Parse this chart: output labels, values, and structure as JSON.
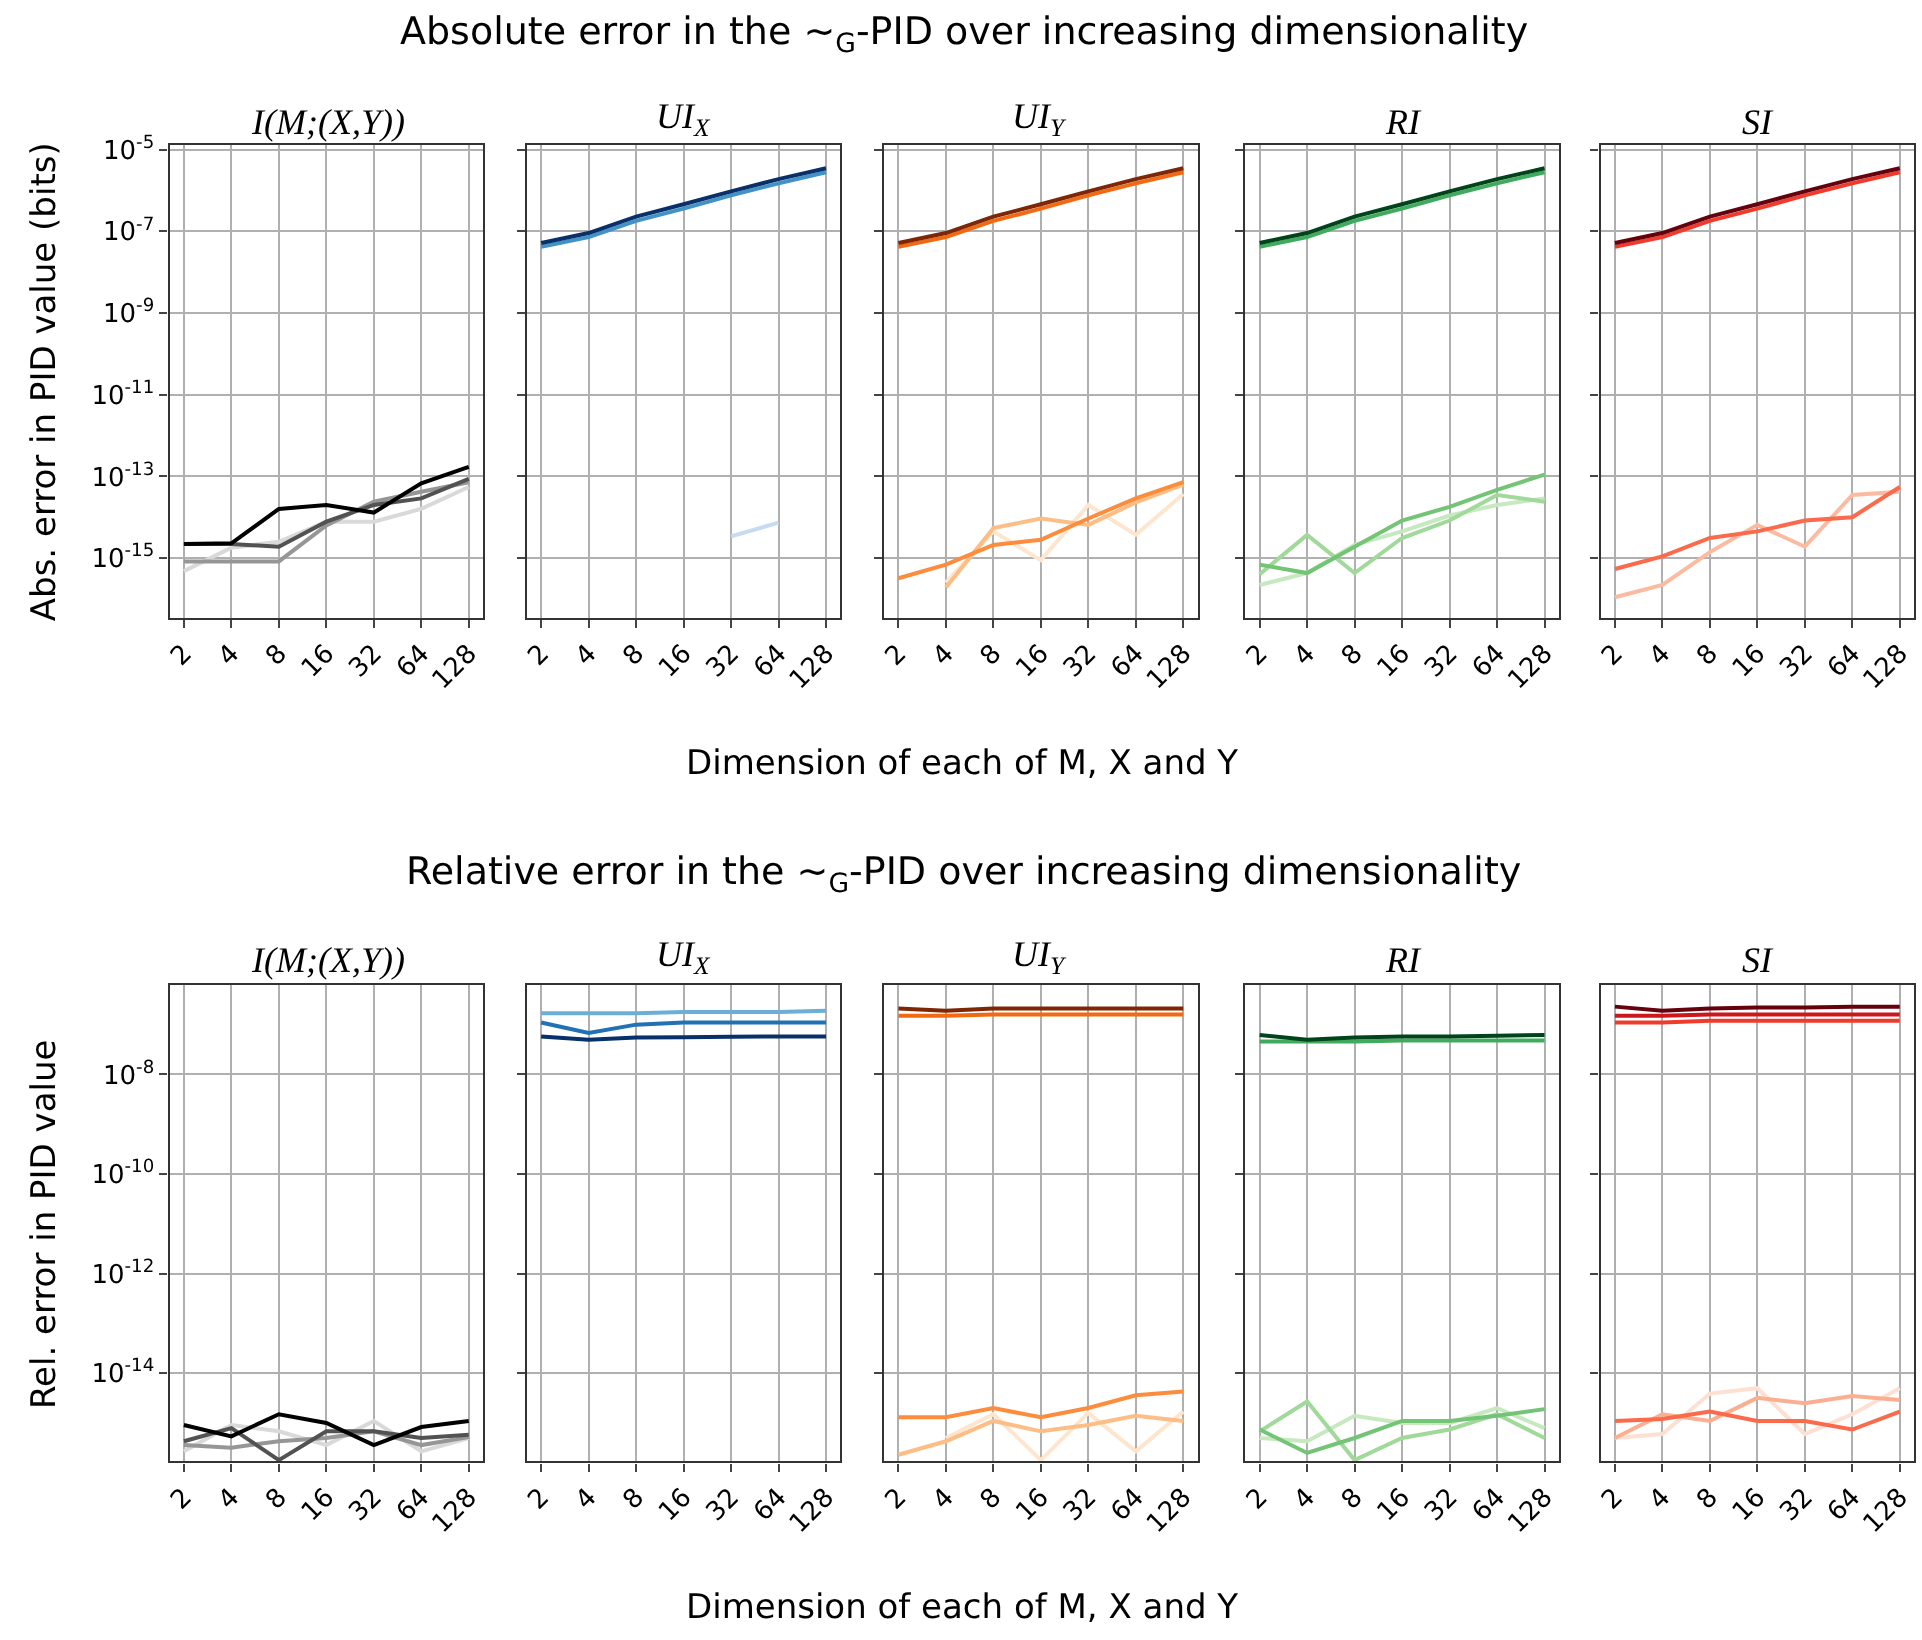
{
  "chart_data": [
    {
      "type": "line",
      "title": "I(M;(X,Y))",
      "annotations": [
        "Absolute error in the ∼$_{G}$-PID over increasing dimensionality"
      ],
      "xlabel": "Dimension of each of M, X and Y",
      "ylabel": "Abs. error in PID value (bits)",
      "categories": [
        "2",
        "4",
        "8",
        "16",
        "32",
        "64",
        "128"
      ],
      "ylim": [
        3.5e-17,
        1.3e-05
      ],
      "yticks": [
        {
          "value": 1e-05,
          "label": "10$^{-5}$"
        },
        {
          "value": 1e-07,
          "label": "10$^{-7}$"
        },
        {
          "value": 1e-09,
          "label": "10$^{-9}$"
        },
        {
          "value": 1e-11,
          "label": "10$^{-11}$"
        },
        {
          "value": 1e-13,
          "label": "10$^{-13}$"
        },
        {
          "value": 1e-15,
          "label": "10$^{-15}$"
        }
      ],
      "log": "y",
      "grid": true,
      "series": [
        {
          "color": "#d9d9d9",
          "values": [
            4.8e-16,
            1.8e-15,
            2.5e-15,
            7.8e-15,
            7.8e-15,
            1.6e-14,
            5.5e-14
          ]
        },
        {
          "color": "#969696",
          "values": [
            8.3e-16,
            8.3e-16,
            8.3e-16,
            6.3e-15,
            2.4e-14,
            4.2e-14,
            7.2e-14
          ]
        },
        {
          "color": "#525252",
          "values": [
            2.2e-15,
            2.2e-15,
            1.9e-15,
            7.8e-15,
            2e-14,
            2.9e-14,
            8.7e-14
          ]
        },
        {
          "color": "#000000",
          "values": [
            2.2e-15,
            2.3e-15,
            1.6e-14,
            2e-14,
            1.3e-14,
            6.8e-14,
            1.7e-13
          ]
        }
      ]
    },
    {
      "type": "line",
      "title": "UI$_{X}$",
      "categories": [
        "2",
        "4",
        "8",
        "16",
        "32",
        "64",
        "128"
      ],
      "ylim": [
        3.5e-17,
        1.3e-05
      ],
      "yticks": [
        {
          "value": 1e-05,
          "label": "10$^{-5}$"
        },
        {
          "value": 1e-07,
          "label": "10$^{-7}$"
        },
        {
          "value": 1e-09,
          "label": "10$^{-9}$"
        },
        {
          "value": 1e-11,
          "label": "10$^{-11}$"
        },
        {
          "value": 1e-13,
          "label": "10$^{-13}$"
        },
        {
          "value": 1e-15,
          "label": "10$^{-15}$"
        }
      ],
      "log": "y",
      "grid": true,
      "tick_labels": "x",
      "series": [
        {
          "color": "#c6dbef",
          "values": [
            null,
            null,
            null,
            null,
            3.4e-15,
            7.4e-15,
            null
          ]
        },
        {
          "color": "#4292c6",
          "values": [
            4.2e-08,
            7.2e-08,
            1.8e-07,
            3.6e-07,
            7.6e-07,
            1.5e-06,
            2.8e-06
          ]
        },
        {
          "color": "#08306b",
          "values": [
            5.2e-08,
            9.1e-08,
            2.3e-07,
            4.6e-07,
            9.5e-07,
            1.9e-06,
            3.5e-06
          ]
        }
      ]
    },
    {
      "type": "line",
      "title": "UI$_{Y}$",
      "categories": [
        "2",
        "4",
        "8",
        "16",
        "32",
        "64",
        "128"
      ],
      "ylim": [
        3.5e-17,
        1.3e-05
      ],
      "yticks": [
        {
          "value": 1e-05,
          "label": "10$^{-5}$"
        },
        {
          "value": 1e-07,
          "label": "10$^{-7}$"
        },
        {
          "value": 1e-09,
          "label": "10$^{-9}$"
        },
        {
          "value": 1e-11,
          "label": "10$^{-11}$"
        },
        {
          "value": 1e-13,
          "label": "10$^{-13}$"
        },
        {
          "value": 1e-15,
          "label": "10$^{-15}$"
        }
      ],
      "log": "y",
      "grid": true,
      "tick_labels": "x",
      "series": [
        {
          "color": "#fee6ce",
          "values": [
            null,
            2.5e-16,
            4.5e-15,
            8.9e-16,
            2e-14,
            3.7e-15,
            3.7e-14
          ]
        },
        {
          "color": "#fdbe85",
          "values": [
            null,
            1.9e-16,
            5.4e-15,
            9.3e-15,
            6.5e-15,
            2.3e-14,
            6.3e-14
          ]
        },
        {
          "color": "#fd8d3c",
          "values": [
            3.2e-16,
            6.9e-16,
            2.1e-15,
            2.8e-15,
            9.3e-15,
            2.9e-14,
            7.2e-14
          ]
        },
        {
          "color": "#f16913",
          "values": [
            4.2e-08,
            7.2e-08,
            1.8e-07,
            3.6e-07,
            7.6e-07,
            1.5e-06,
            2.8e-06
          ]
        },
        {
          "color": "#7f2704",
          "values": [
            5.2e-08,
            9.1e-08,
            2.3e-07,
            4.6e-07,
            9.5e-07,
            1.9e-06,
            3.5e-06
          ]
        }
      ]
    },
    {
      "type": "line",
      "title": "RI",
      "categories": [
        "2",
        "4",
        "8",
        "16",
        "32",
        "64",
        "128"
      ],
      "ylim": [
        3.5e-17,
        1.3e-05
      ],
      "yticks": [
        {
          "value": 1e-05,
          "label": "10$^{-5}$"
        },
        {
          "value": 1e-07,
          "label": "10$^{-7}$"
        },
        {
          "value": 1e-09,
          "label": "10$^{-9}$"
        },
        {
          "value": 1e-11,
          "label": "10$^{-11}$"
        },
        {
          "value": 1e-13,
          "label": "10$^{-13}$"
        },
        {
          "value": 1e-15,
          "label": "10$^{-15}$"
        }
      ],
      "log": "y",
      "grid": true,
      "tick_labels": "x",
      "series": [
        {
          "color": "#c7e9c0",
          "values": [
            2.2e-16,
            4.3e-16,
            2.1e-15,
            4.5e-15,
            1.1e-14,
            2e-14,
            2.9e-14
          ]
        },
        {
          "color": "#a1d99b",
          "values": [
            4e-16,
            3.7e-15,
            4.3e-16,
            3.1e-15,
            8.3e-15,
            3.5e-14,
            2.4e-14
          ]
        },
        {
          "color": "#74c476",
          "values": [
            6.9e-16,
            4.3e-16,
            1.9e-15,
            8.3e-15,
            1.8e-14,
            4.7e-14,
            1.1e-13
          ]
        },
        {
          "color": "#41ab5d",
          "values": [
            4.2e-08,
            7.2e-08,
            1.8e-07,
            3.6e-07,
            7.6e-07,
            1.5e-06,
            2.8e-06
          ]
        },
        {
          "color": "#00441b",
          "values": [
            5.2e-08,
            9.1e-08,
            2.3e-07,
            4.6e-07,
            9.5e-07,
            1.9e-06,
            3.5e-06
          ]
        }
      ]
    },
    {
      "type": "line",
      "title": "SI",
      "categories": [
        "2",
        "4",
        "8",
        "16",
        "32",
        "64",
        "128"
      ],
      "ylim": [
        3.5e-17,
        1.3e-05
      ],
      "yticks": [
        {
          "value": 1e-05,
          "label": "10$^{-5}$"
        },
        {
          "value": 1e-07,
          "label": "10$^{-7}$"
        },
        {
          "value": 1e-09,
          "label": "10$^{-9}$"
        },
        {
          "value": 1e-11,
          "label": "10$^{-11}$"
        },
        {
          "value": 1e-13,
          "label": "10$^{-13}$"
        },
        {
          "value": 1e-15,
          "label": "10$^{-15}$"
        }
      ],
      "log": "y",
      "grid": true,
      "tick_labels": "x",
      "series": [
        {
          "color": "#fcbba1",
          "values": [
            1.1e-16,
            2.2e-16,
            1.4e-15,
            6.5e-15,
            1.9e-15,
            3.5e-14,
            4.2e-14
          ]
        },
        {
          "color": "#fb6a4a",
          "values": [
            5.4e-16,
            1.1e-15,
            3.1e-15,
            4.5e-15,
            8.3e-15,
            1e-14,
            5.5e-14
          ]
        },
        {
          "color": "#ef3b2c",
          "values": [
            4.2e-08,
            7.2e-08,
            1.8e-07,
            3.6e-07,
            7.6e-07,
            1.5e-06,
            2.8e-06
          ]
        },
        {
          "color": "#67000d",
          "values": [
            5.2e-08,
            9.1e-08,
            2.3e-07,
            4.6e-07,
            9.5e-07,
            1.9e-06,
            3.5e-06
          ]
        }
      ]
    },
    {
      "type": "line",
      "title": "I(M;(X,Y))",
      "annotations": [
        "Relative error in the ∼$_{G}$-PID over increasing dimensionality"
      ],
      "xlabel": "Dimension of each of M, X and Y",
      "ylabel": "Rel. error in PID value",
      "categories": [
        "2",
        "4",
        "8",
        "16",
        "32",
        "64",
        "128"
      ],
      "ylim": [
        1.7e-16,
        6.3e-07
      ],
      "yticks": [
        {
          "value": 1e-08,
          "label": "10$^{-8}$"
        },
        {
          "value": 1e-10,
          "label": "10$^{-10}$"
        },
        {
          "value": 1e-12,
          "label": "10$^{-12}$"
        },
        {
          "value": 1e-14,
          "label": "10$^{-14}$"
        }
      ],
      "log": "y",
      "grid": true,
      "series": [
        {
          "color": "#d9d9d9",
          "values": [
            2.7e-16,
            9.1e-16,
            6.8e-16,
            3.6e-16,
            1.1e-15,
            2.7e-16,
            5e-16
          ]
        },
        {
          "color": "#969696",
          "values": [
            3.6e-16,
            3.2e-16,
            4.3e-16,
            5e-16,
            6.8e-16,
            3.6e-16,
            5.2e-16
          ]
        },
        {
          "color": "#525252",
          "values": [
            4.3e-16,
            7.9e-16,
            1.8e-16,
            6.8e-16,
            6.8e-16,
            5e-16,
            5.8e-16
          ]
        },
        {
          "color": "#000000",
          "values": [
            9.1e-16,
            5.4e-16,
            1.5e-15,
            1e-15,
            3.6e-16,
            8.3e-16,
            1.1e-15
          ]
        }
      ]
    },
    {
      "type": "line",
      "title": "UI$_{X}$",
      "categories": [
        "2",
        "4",
        "8",
        "16",
        "32",
        "64",
        "128"
      ],
      "ylim": [
        1.7e-16,
        6.3e-07
      ],
      "yticks": [
        {
          "value": 1e-08,
          "label": "10$^{-8}$"
        },
        {
          "value": 1e-10,
          "label": "10$^{-10}$"
        },
        {
          "value": 1e-12,
          "label": "10$^{-12}$"
        },
        {
          "value": 1e-14,
          "label": "10$^{-14}$"
        }
      ],
      "log": "y",
      "grid": true,
      "tick_labels": "x",
      "series": [
        {
          "color": "#6baed6",
          "values": [
            1.7e-07,
            1.7e-07,
            1.7e-07,
            1.8e-07,
            1.8e-07,
            1.8e-07,
            1.9e-07
          ]
        },
        {
          "color": "#2171b5",
          "values": [
            1.1e-07,
            6.8e-08,
            1e-07,
            1.1e-07,
            1.1e-07,
            1.1e-07,
            1.1e-07
          ]
        },
        {
          "color": "#08306b",
          "values": [
            5.8e-08,
            5e-08,
            5.5e-08,
            5.6e-08,
            5.7e-08,
            5.8e-08,
            5.8e-08
          ]
        }
      ]
    },
    {
      "type": "line",
      "title": "UI$_{Y}$",
      "categories": [
        "2",
        "4",
        "8",
        "16",
        "32",
        "64",
        "128"
      ],
      "ylim": [
        1.7e-16,
        6.3e-07
      ],
      "yticks": [
        {
          "value": 1e-08,
          "label": "10$^{-8}$"
        },
        {
          "value": 1e-10,
          "label": "10$^{-10}$"
        },
        {
          "value": 1e-12,
          "label": "10$^{-12}$"
        },
        {
          "value": 1e-14,
          "label": "10$^{-14}$"
        }
      ],
      "log": "y",
      "grid": true,
      "tick_labels": "x",
      "series": [
        {
          "color": "#fee6ce",
          "values": [
            null,
            5e-16,
            1.5e-15,
            1.8e-16,
            1.6e-15,
            2.7e-16,
            1.7e-15
          ]
        },
        {
          "color": "#fdbe85",
          "values": [
            2.3e-16,
            4.3e-16,
            1.1e-15,
            6.8e-16,
            9.1e-16,
            1.4e-15,
            1.1e-15
          ]
        },
        {
          "color": "#fd8d3c",
          "values": [
            1.3e-15,
            1.3e-15,
            2e-15,
            1.3e-15,
            2e-15,
            3.6e-15,
            4.3e-15
          ]
        },
        {
          "color": "#f16913",
          "values": [
            1.5e-07,
            1.5e-07,
            1.6e-07,
            1.6e-07,
            1.6e-07,
            1.6e-07,
            1.6e-07
          ]
        },
        {
          "color": "#7f2704",
          "values": [
            2.1e-07,
            1.9e-07,
            2.1e-07,
            2.1e-07,
            2.1e-07,
            2.1e-07,
            2.1e-07
          ]
        }
      ]
    },
    {
      "type": "line",
      "title": "RI",
      "categories": [
        "2",
        "4",
        "8",
        "16",
        "32",
        "64",
        "128"
      ],
      "ylim": [
        1.7e-16,
        6.3e-07
      ],
      "yticks": [
        {
          "value": 1e-08,
          "label": "10$^{-8}$"
        },
        {
          "value": 1e-10,
          "label": "10$^{-10}$"
        },
        {
          "value": 1e-12,
          "label": "10$^{-12}$"
        },
        {
          "value": 1e-14,
          "label": "10$^{-14}$"
        }
      ],
      "log": "y",
      "grid": true,
      "tick_labels": "x",
      "series": [
        {
          "color": "#c7e9c0",
          "values": [
            5e-16,
            4.3e-16,
            1.4e-15,
            1e-15,
            1e-15,
            2e-15,
            7.9e-16
          ]
        },
        {
          "color": "#a1d99b",
          "values": [
            6.8e-16,
            2.7e-15,
            1.8e-16,
            5e-16,
            7.4e-16,
            1.5e-15,
            5e-16
          ]
        },
        {
          "color": "#74c476",
          "values": [
            7.4e-16,
            2.5e-16,
            5e-16,
            1.1e-15,
            1.1e-15,
            1.4e-15,
            1.9e-15
          ]
        },
        {
          "color": "#41ab5d",
          "values": [
            4.6e-08,
            4.6e-08,
            4.6e-08,
            4.8e-08,
            4.8e-08,
            4.8e-08,
            4.8e-08
          ]
        },
        {
          "color": "#00441b",
          "values": [
            6.2e-08,
            5e-08,
            5.5e-08,
            5.8e-08,
            5.8e-08,
            6e-08,
            6.2e-08
          ]
        }
      ]
    },
    {
      "type": "line",
      "title": "SI",
      "categories": [
        "2",
        "4",
        "8",
        "16",
        "32",
        "64",
        "128"
      ],
      "ylim": [
        1.7e-16,
        6.3e-07
      ],
      "yticks": [
        {
          "value": 1e-08,
          "label": "10$^{-8}$"
        },
        {
          "value": 1e-10,
          "label": "10$^{-10}$"
        },
        {
          "value": 1e-12,
          "label": "10$^{-12}$"
        },
        {
          "value": 1e-14,
          "label": "10$^{-14}$"
        }
      ],
      "log": "y",
      "grid": true,
      "tick_labels": "x",
      "series": [
        {
          "color": "#fee0d2",
          "values": [
            5e-16,
            6e-16,
            3.9e-15,
            5e-15,
            6e-16,
            1.5e-15,
            5e-15
          ]
        },
        {
          "color": "#fcae91",
          "values": [
            5e-16,
            1.5e-15,
            1.1e-15,
            3.2e-15,
            2.5e-15,
            3.5e-15,
            2.9e-15
          ]
        },
        {
          "color": "#fb6a4a",
          "values": [
            1.1e-15,
            1.2e-15,
            1.7e-15,
            1.1e-15,
            1.1e-15,
            7.4e-16,
            1.7e-15
          ]
        },
        {
          "color": "#ef3b2c",
          "values": [
            1.1e-07,
            1.1e-07,
            1.2e-07,
            1.2e-07,
            1.2e-07,
            1.2e-07,
            1.2e-07
          ]
        },
        {
          "color": "#cb181d",
          "values": [
            1.5e-07,
            1.5e-07,
            1.6e-07,
            1.6e-07,
            1.6e-07,
            1.6e-07,
            1.6e-07
          ]
        },
        {
          "color": "#67000d",
          "values": [
            2.3e-07,
            1.9e-07,
            2.1e-07,
            2.2e-07,
            2.2e-07,
            2.3e-07,
            2.3e-07
          ]
        }
      ]
    }
  ]
}
